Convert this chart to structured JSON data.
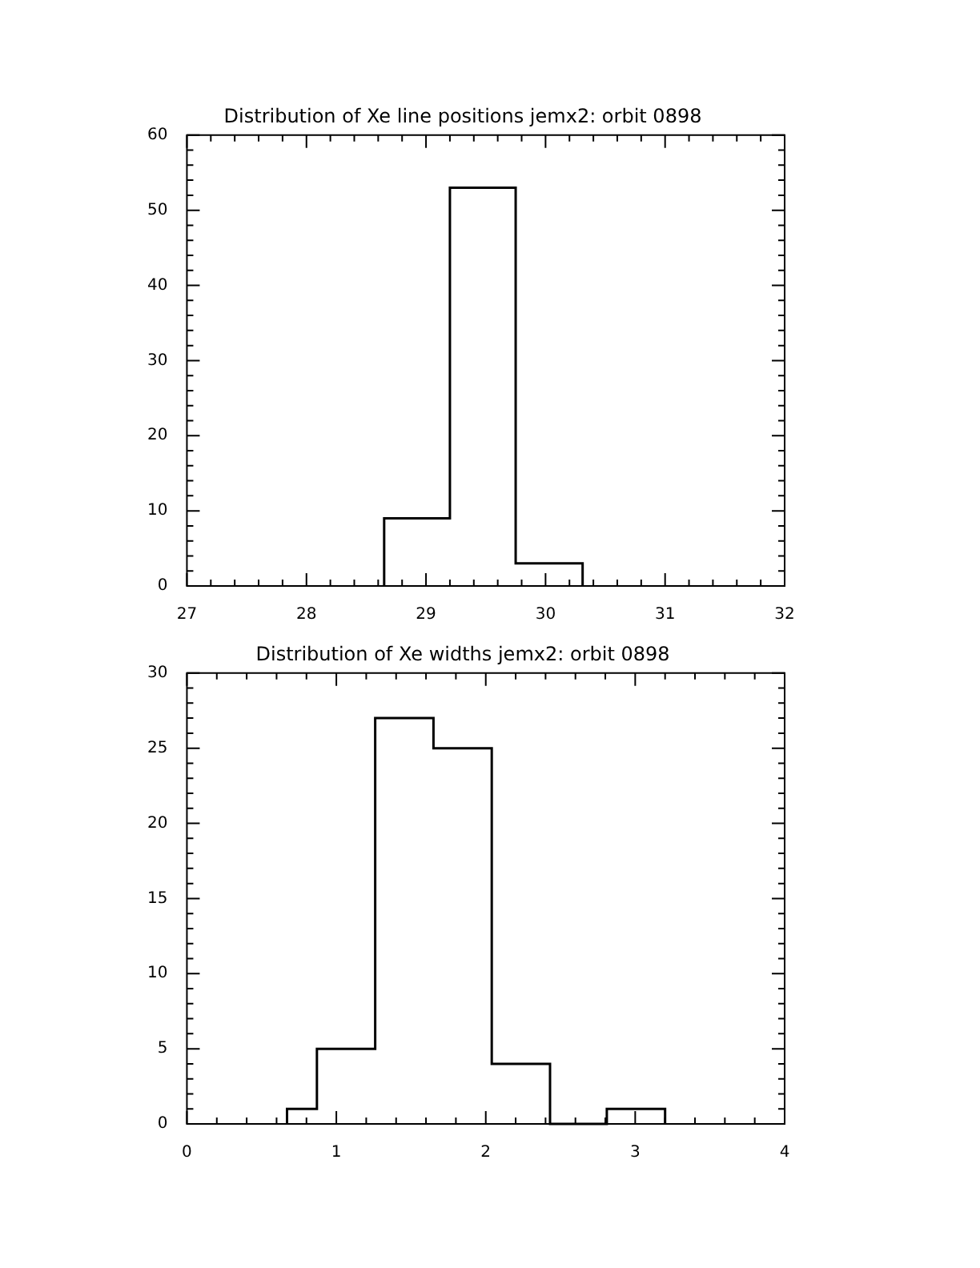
{
  "chart_data": [
    {
      "type": "histogram",
      "title": "Distribution of Xe line positions jemx2: orbit 0898",
      "bins": [
        28.65,
        29.2,
        29.75,
        30.31
      ],
      "values": [
        9,
        53,
        3
      ],
      "color": "#000000",
      "xlim": [
        27,
        32
      ],
      "xticks": [
        27,
        28,
        29,
        30,
        31,
        32
      ],
      "ylim": [
        0,
        60
      ],
      "yticks": [
        0,
        10,
        20,
        30,
        40,
        50,
        60
      ]
    },
    {
      "type": "histogram",
      "title": "Distribution of Xe widths jemx2: orbit 0898",
      "bins": [
        0.67,
        0.87,
        1.26,
        1.65,
        2.04,
        2.43,
        2.81,
        3.2
      ],
      "values": [
        1,
        5,
        27,
        25,
        4,
        0,
        1
      ],
      "color": "#000000",
      "xlim": [
        0,
        4
      ],
      "xticks": [
        0,
        1,
        2,
        3,
        4
      ],
      "ylim": [
        0,
        30
      ],
      "yticks": [
        0,
        5,
        10,
        15,
        20,
        25,
        30
      ]
    }
  ]
}
